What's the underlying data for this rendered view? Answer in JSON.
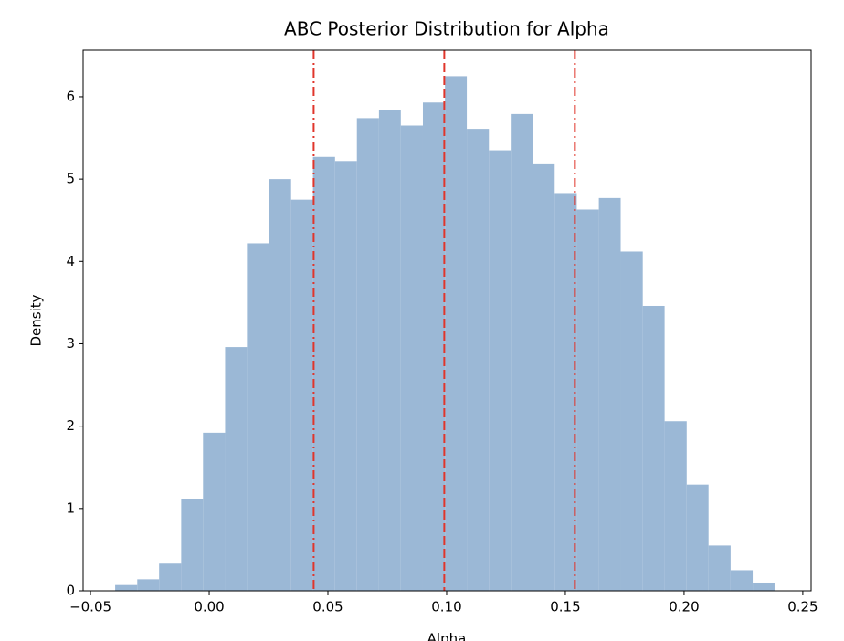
{
  "chart_data": {
    "type": "histogram",
    "title": "ABC Posterior Distribution for Alpha",
    "x_label": "Alpha",
    "y_label": "Density",
    "bins": [
      -0.0396,
      -0.0303,
      -0.0211,
      -0.0118,
      -0.0026,
      0.0067,
      0.0159,
      0.0252,
      0.0345,
      0.0437,
      0.053,
      0.0622,
      0.0715,
      0.0807,
      0.09,
      0.0993,
      0.1085,
      0.1178,
      0.127,
      0.1363,
      0.1455,
      0.1548,
      0.1641,
      0.1733,
      0.1826,
      0.1918,
      0.2011,
      0.2103,
      0.2196,
      0.2289,
      0.2381
    ],
    "values": [
      0.07,
      0.14,
      0.33,
      1.11,
      1.92,
      2.96,
      4.22,
      5.0,
      4.75,
      5.27,
      5.22,
      5.74,
      5.84,
      5.65,
      5.93,
      6.25,
      5.61,
      5.35,
      5.79,
      5.18,
      4.83,
      4.63,
      4.77,
      4.12,
      3.46,
      2.06,
      1.29,
      0.55,
      0.25,
      0.1
    ],
    "color": "#9bb8d6",
    "vlines": [
      {
        "value": 0.044,
        "color": "#e0352b",
        "dash": "10 4 2 4"
      },
      {
        "value": 0.099,
        "color": "#e0352b",
        "dash": "10 4"
      },
      {
        "value": 0.154,
        "color": "#e0352b",
        "dash": "10 4 2 4"
      }
    ],
    "xlim": [
      -0.0531,
      0.2535
    ],
    "ylim": [
      0,
      6.565
    ],
    "xticks": [
      {
        "value": -0.05,
        "label": "−0.05"
      },
      {
        "value": 0,
        "label": "0.00"
      },
      {
        "value": 0.05,
        "label": "0.05"
      },
      {
        "value": 0.1,
        "label": "0.10"
      },
      {
        "value": 0.15,
        "label": "0.15"
      },
      {
        "value": 0.2,
        "label": "0.20"
      },
      {
        "value": 0.25,
        "label": "0.25"
      }
    ],
    "yticks": [
      0,
      1,
      2,
      3,
      4,
      5,
      6
    ]
  }
}
